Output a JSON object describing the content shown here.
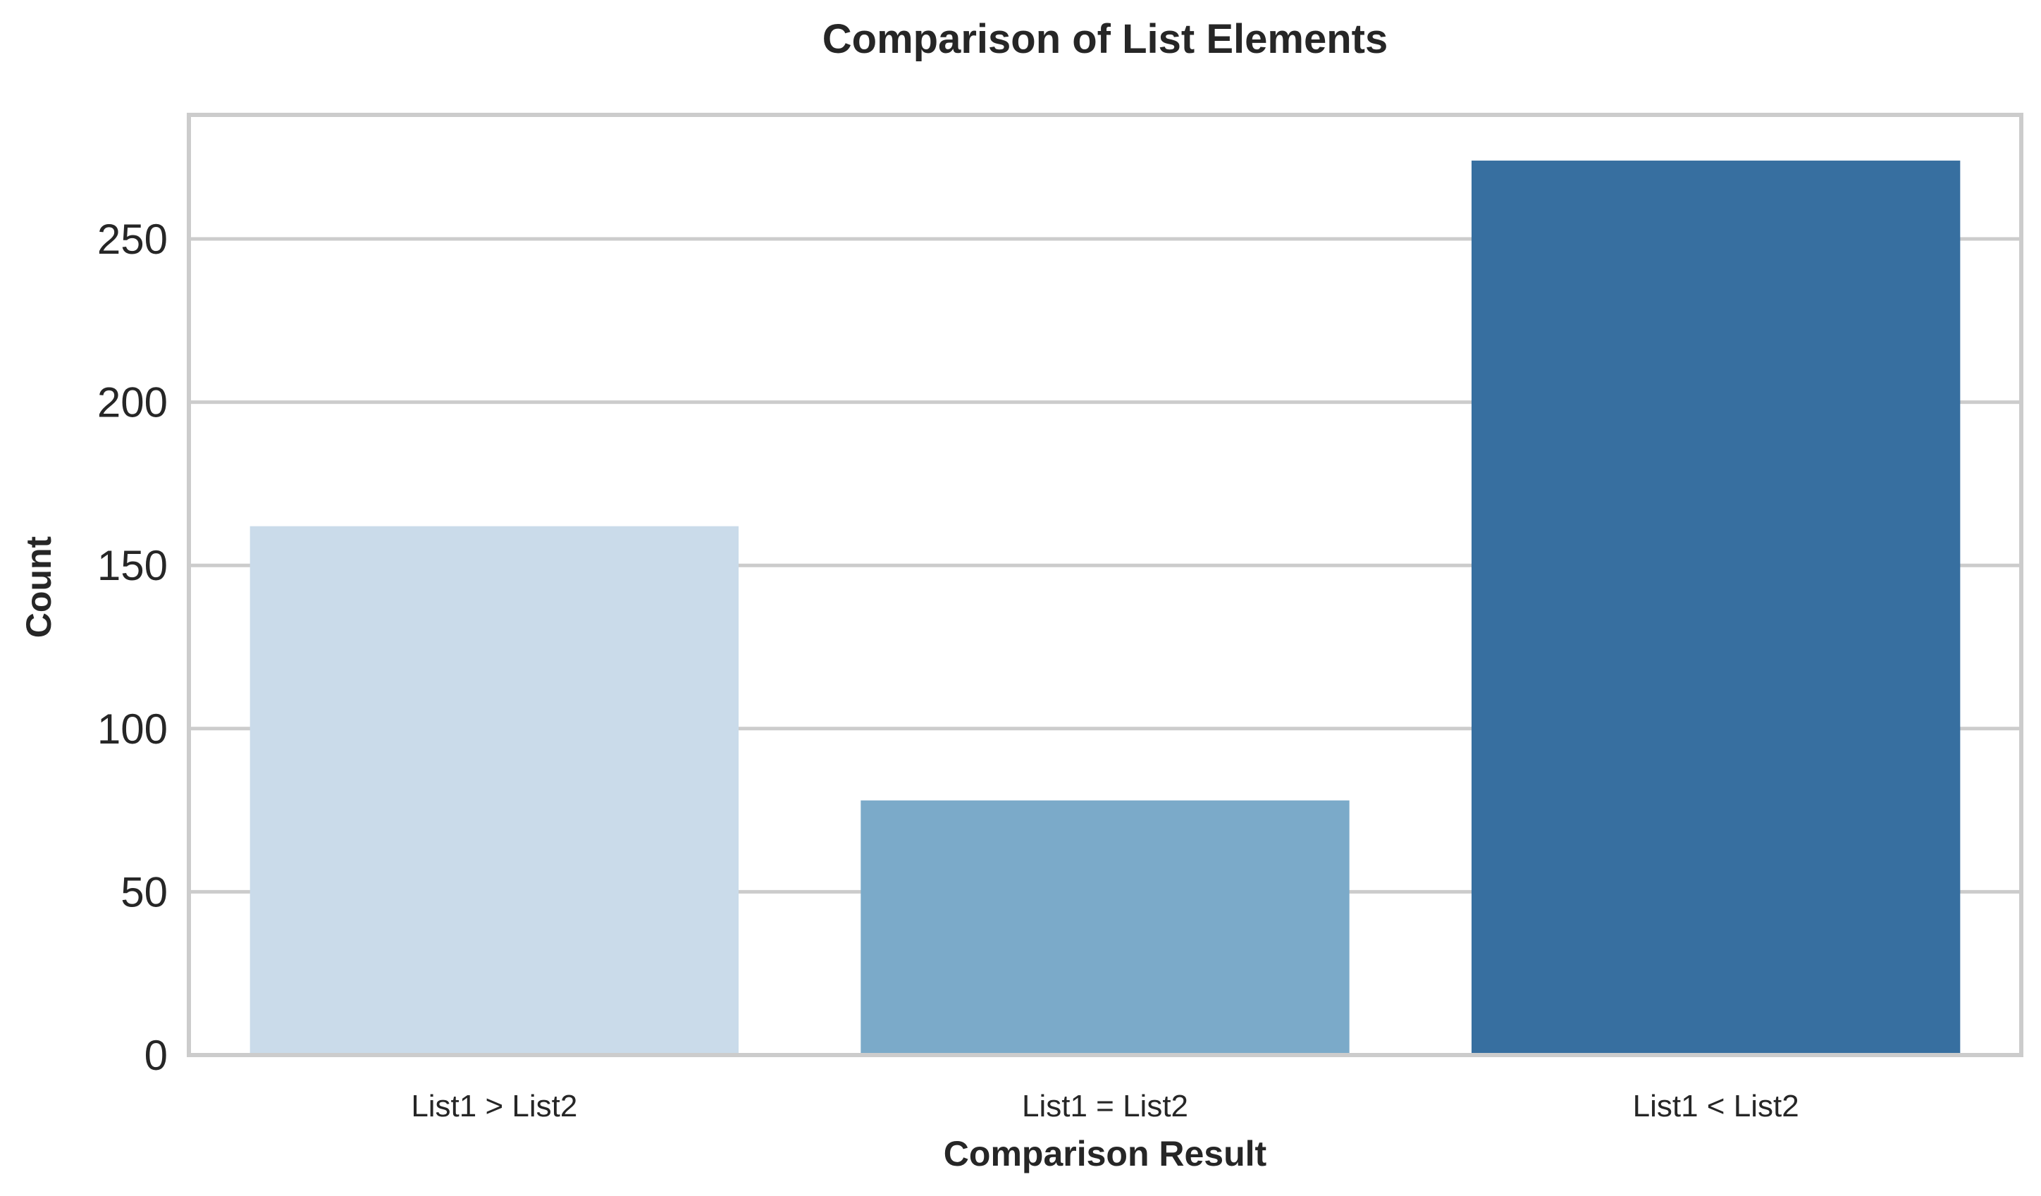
{
  "chart_data": {
    "type": "bar",
    "title": "Comparison of List Elements",
    "xlabel": "Comparison Result",
    "ylabel": "Count",
    "categories": [
      "List1 > List2",
      "List1 = List2",
      "List1 < List2"
    ],
    "values": [
      162,
      78,
      274
    ],
    "colors": [
      "#cadbea",
      "#7baac9",
      "#376fa0"
    ],
    "ylim": [
      0,
      288
    ],
    "yticks": [
      0,
      50,
      100,
      150,
      200,
      250
    ],
    "grid": true,
    "grid_color": "#cccccc",
    "spine_color": "#cccccc",
    "legend": "none"
  }
}
